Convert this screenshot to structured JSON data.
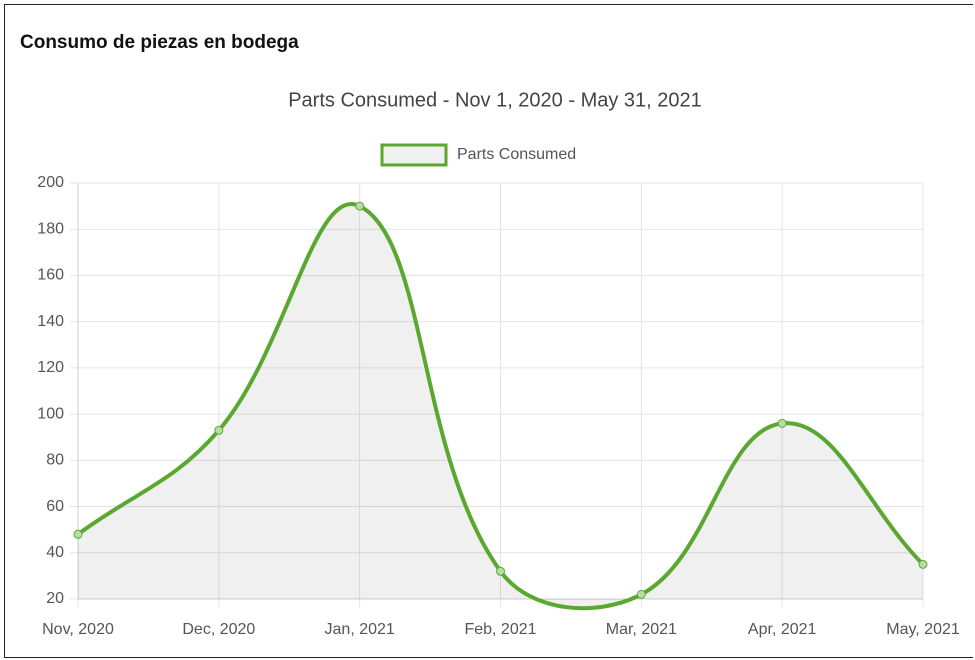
{
  "header": {
    "title": "Consumo de piezas en bodega"
  },
  "chart_data": {
    "type": "line",
    "title": "Parts Consumed - Nov 1, 2020 - May 31, 2021",
    "categories": [
      "Nov, 2020",
      "Dec, 2020",
      "Jan, 2021",
      "Feb, 2021",
      "Mar, 2021",
      "Apr, 2021",
      "May, 2021"
    ],
    "series": [
      {
        "name": "Parts Consumed",
        "color": "#5aa830",
        "values": [
          48,
          93,
          190,
          32,
          22,
          96,
          35
        ]
      }
    ],
    "ylim": [
      20,
      200
    ],
    "yticks": [
      20,
      40,
      60,
      80,
      100,
      120,
      140,
      160,
      180,
      200
    ],
    "grid": true,
    "legend": "top"
  }
}
